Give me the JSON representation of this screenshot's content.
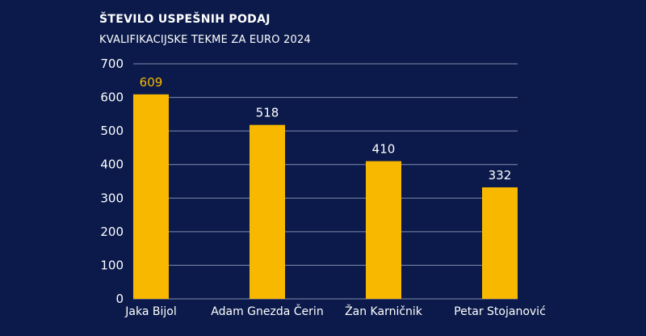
{
  "chart_data": {
    "type": "bar",
    "title": "ŠTEVILO USPEŠNIH PODAJ",
    "subtitle": "KVALIFIKACIJSKE TEKME ZA EURO 2024",
    "xlabel": "",
    "ylabel": "",
    "categories": [
      "Jaka Bijol",
      "Adam Gnezda Čerin",
      "Žan Karničnik",
      "Petar Stojanović"
    ],
    "values": [
      609,
      518,
      410,
      332
    ],
    "ylim": [
      0,
      700
    ],
    "yticks": [
      0,
      100,
      200,
      300,
      400,
      500,
      600,
      700
    ],
    "grid": true,
    "legend": "none"
  },
  "colors": {
    "background": "#0b1a4a",
    "bar": "#f9b800",
    "highlight_label": "#f9b800",
    "label": "#ffffff",
    "grid": "#aab3cf"
  }
}
